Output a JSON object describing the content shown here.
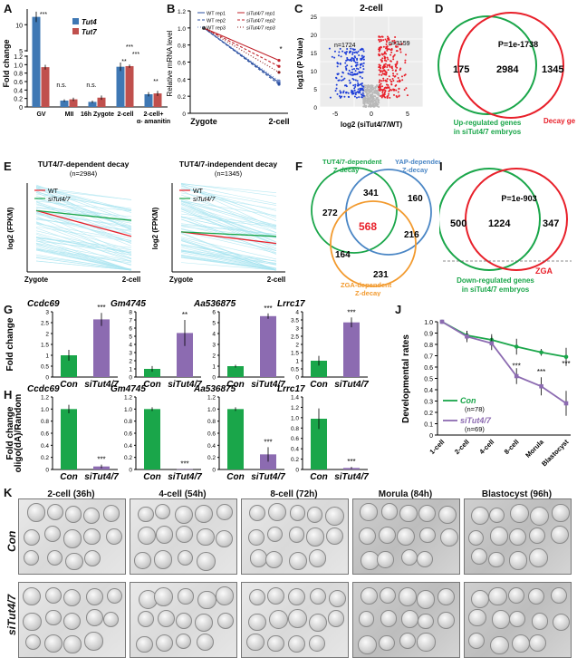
{
  "panels": {
    "A": "A",
    "B": "B",
    "C": "C",
    "D": "D",
    "E": "E",
    "F": "F",
    "G": "G",
    "H": "H",
    "I": "I",
    "J": "J",
    "K": "K"
  },
  "colors": {
    "tut4": "#3f78b4",
    "tut7": "#c0504d",
    "green": "#1aa64a",
    "red": "#e8202a",
    "blue": "#4a86c5",
    "orange": "#f29a2e",
    "purple": "#8c6bb1",
    "cyan": "#a8e4f0"
  },
  "chart_data": [
    {
      "id": "A",
      "type": "bar",
      "ylabel": "Fold change",
      "ylim": [
        0,
        14
      ],
      "yticks": [
        "0",
        "0.2",
        "0.4",
        "0.6",
        "0.8",
        "1.0",
        "1.2",
        "5",
        "10"
      ],
      "categories": [
        "GV",
        "MII",
        "16h Zygote",
        "2-cell",
        "2-cell+ α- amanitin"
      ],
      "series": [
        {
          "name": "Tut4",
          "values": [
            11.5,
            0.15,
            0.12,
            0.95,
            0.3
          ],
          "errors": [
            1.0,
            0.03,
            0.03,
            0.1,
            0.05
          ]
        },
        {
          "name": "Tut7",
          "values": [
            1.85,
            0.18,
            0.22,
            2.05,
            0.32
          ],
          "errors": [
            0.45,
            0.04,
            0.05,
            0.3,
            0.06
          ]
        }
      ],
      "annotations": [
        "***",
        "n.s.",
        "n.s.",
        "**",
        "***",
        "***",
        "**"
      ]
    },
    {
      "id": "B",
      "type": "line",
      "ylabel": "Relative mRNA level",
      "ylim": [
        0,
        1.2
      ],
      "yticks": [
        "0",
        "0.2",
        "0.4",
        "0.6",
        "0.8",
        "1.0",
        "1.2"
      ],
      "categories": [
        "Zygote",
        "2-cell"
      ],
      "series": [
        {
          "name": "WT rep1",
          "values": [
            1.0,
            0.36
          ]
        },
        {
          "name": "WT rep2",
          "values": [
            1.0,
            0.34
          ]
        },
        {
          "name": "WT rep3",
          "values": [
            1.0,
            0.38
          ]
        },
        {
          "name": "siTut4/7 rep1",
          "values": [
            1.0,
            0.62
          ]
        },
        {
          "name": "siTut4/7 rep2",
          "values": [
            1.0,
            0.55
          ]
        },
        {
          "name": "siTut4/7 rep3",
          "values": [
            1.0,
            0.48
          ]
        }
      ],
      "annotation": "*"
    },
    {
      "id": "C",
      "type": "scatter",
      "title": "2-cell",
      "xlabel": "log2 (siTut4/7/WT)",
      "ylabel": "log10 (P Value)",
      "xticks": [
        "-5",
        "0",
        "5"
      ],
      "yticks": [
        "0",
        "5",
        "10",
        "15",
        "20",
        "25"
      ],
      "counts": {
        "down": "n=1724",
        "up": "n=3159"
      }
    },
    {
      "id": "J",
      "type": "line",
      "ylabel": "Developmental rates",
      "ylim": [
        0,
        1.0
      ],
      "yticks": [
        "0",
        "0.1",
        "0.2",
        "0.3",
        "0.4",
        "0.5",
        "0.6",
        "0.7",
        "0.8",
        "0.9",
        "1.0"
      ],
      "categories": [
        "1-cell",
        "2-cell",
        "4-cell",
        "8-cell",
        "Morula",
        "Blastocyst"
      ],
      "series": [
        {
          "name": "Con",
          "n": "(n=78)",
          "values": [
            1.0,
            0.88,
            0.84,
            0.78,
            0.73,
            0.69
          ],
          "errors": [
            0.01,
            0.04,
            0.05,
            0.07,
            0.03,
            0.08
          ]
        },
        {
          "name": "siTut4/7",
          "n": "(n=69)",
          "values": [
            1.0,
            0.87,
            0.81,
            0.52,
            0.43,
            0.28
          ],
          "errors": [
            0.01,
            0.05,
            0.06,
            0.07,
            0.08,
            0.11
          ]
        }
      ],
      "annotations": [
        "***",
        "***",
        "***"
      ]
    },
    {
      "id": "G",
      "type": "bar",
      "ylabel": "Fold change",
      "groups": [
        {
          "gene": "Ccdc69",
          "ylim": [
            0,
            3
          ],
          "yticks": [
            "0",
            "0.5",
            "1",
            "1.5",
            "2",
            "2.5",
            "3"
          ],
          "values": [
            1.0,
            2.65
          ],
          "errors": [
            0.25,
            0.3
          ],
          "sig": "***"
        },
        {
          "gene": "Gm4745",
          "ylim": [
            0,
            8
          ],
          "yticks": [
            "0",
            "1",
            "2",
            "3",
            "4",
            "5",
            "6",
            "7",
            "8"
          ],
          "values": [
            1.0,
            5.4
          ],
          "errors": [
            0.35,
            1.6
          ],
          "sig": "**"
        },
        {
          "gene": "Aa536875",
          "ylim": [
            0,
            6
          ],
          "yticks": [
            "0",
            "1",
            "2",
            "3",
            "4",
            "5",
            "6"
          ],
          "values": [
            1.0,
            5.6
          ],
          "errors": [
            0.12,
            0.25
          ],
          "sig": "***"
        },
        {
          "gene": "Lrrc17",
          "ylim": [
            0,
            4
          ],
          "yticks": [
            "0",
            "0.5",
            "1",
            "1.5",
            "2",
            "2.5",
            "3",
            "3.5",
            "4"
          ],
          "values": [
            1.0,
            3.35
          ],
          "errors": [
            0.3,
            0.3
          ],
          "sig": "***"
        }
      ],
      "categories": [
        "Con",
        "siTut4/7"
      ]
    },
    {
      "id": "H",
      "type": "bar",
      "ylabel": "Fold change oligo(dA)/Random",
      "groups": [
        {
          "gene": "Ccdc69",
          "ylim": [
            0,
            1.2
          ],
          "yticks": [
            "0",
            "0.2",
            "0.4",
            "0.6",
            "0.8",
            "1.0",
            "1.2"
          ],
          "values": [
            1.0,
            0.05
          ],
          "errors": [
            0.07,
            0.03
          ],
          "sig": "***"
        },
        {
          "gene": "Gm4745",
          "ylim": [
            0,
            1.2
          ],
          "yticks": [
            "0",
            "0.2",
            "0.4",
            "0.6",
            "0.8",
            "1.0",
            "1.2"
          ],
          "values": [
            1.0,
            0.004
          ],
          "errors": [
            0.03,
            0.002
          ],
          "sig": "***"
        },
        {
          "gene": "Aa536875",
          "ylim": [
            0,
            1.2
          ],
          "yticks": [
            "0",
            "0.2",
            "0.4",
            "0.6",
            "0.8",
            "1.0",
            "1.2"
          ],
          "values": [
            1.0,
            0.25
          ],
          "errors": [
            0.03,
            0.12
          ],
          "sig": "***"
        },
        {
          "gene": "Lrrc17",
          "ylim": [
            0,
            1.4
          ],
          "yticks": [
            "0",
            "0.2",
            "0.4",
            "0.6",
            "0.8",
            "1.0",
            "1.2",
            "1.4"
          ],
          "values": [
            0.98,
            0.03
          ],
          "errors": [
            0.2,
            0.02
          ],
          "sig": "***"
        }
      ],
      "categories": [
        "Con",
        "siTut4/7"
      ]
    },
    {
      "id": "E",
      "type": "line",
      "ylabel": "log2 (FPKM)",
      "charts": [
        {
          "title": "TUT4/7-dependent decay",
          "n": "(n=2984)",
          "WT": [
            6.9,
            4.0
          ],
          "siTut4/7": [
            6.9,
            5.8
          ]
        },
        {
          "title": "TUT4/7-independent decay",
          "n": "(n=1345)",
          "WT": [
            4.5,
            3.2
          ],
          "siTut4/7": [
            4.5,
            4.0
          ]
        }
      ],
      "categories": [
        "Zygote",
        "2-cell"
      ],
      "legend": [
        "WT",
        "siTut4/7"
      ]
    }
  ],
  "venn_D": {
    "p": "P=1e-1738",
    "left": "175",
    "center": "2984",
    "right": "1345",
    "label_red": "Decay genes",
    "label_green1": "Up-regulated genes",
    "label_green2": "in siTut4/7 embryos"
  },
  "venn_F": {
    "label_green1": "TUT4/7-dependent",
    "label_green2": "Z-decay",
    "label_blue1": "YAP-dependent",
    "label_blue2": "Z-decay",
    "label_orange1": "ZGA-dependent",
    "label_orange2": "Z-decay",
    "n272": "272",
    "n341": "341",
    "n160": "160",
    "n568": "568",
    "n216": "216",
    "n164": "164",
    "n231": "231"
  },
  "venn_I": {
    "p": "P=1e-903",
    "left": "500",
    "center": "1224",
    "right": "347",
    "label_red": "ZGA",
    "label_green1": "Down-regulated genes",
    "label_green2": "in siTut4/7 embryos"
  },
  "panel_K": {
    "columns": [
      "2-cell (36h)",
      "4-cell (54h)",
      "8-cell (72h)",
      "Morula (84h)",
      "Blastocyst (96h)"
    ],
    "rows": [
      "Con",
      "siTut4/7"
    ]
  }
}
